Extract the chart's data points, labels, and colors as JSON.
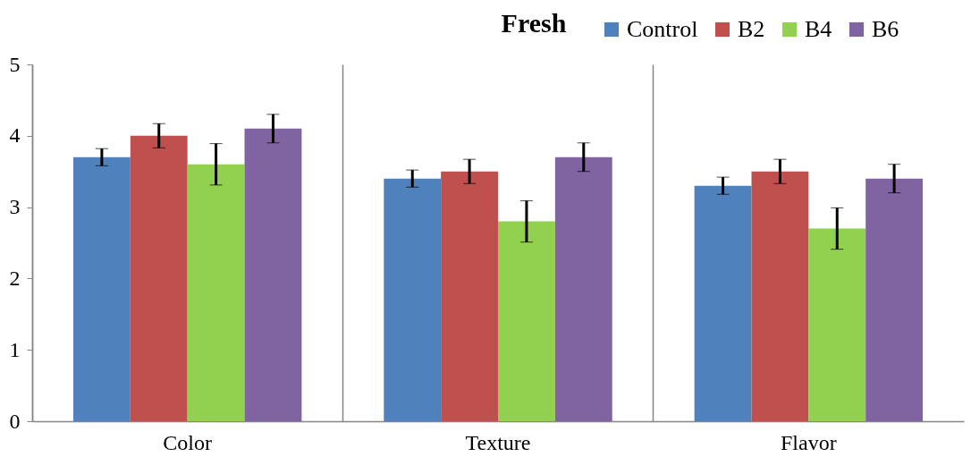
{
  "chart_data": {
    "type": "bar",
    "title": "Fresh",
    "categories": [
      "Color",
      "Texture",
      "Flavor"
    ],
    "series": [
      {
        "name": "Control",
        "color": "#4f81bd",
        "values": [
          3.7,
          3.4,
          3.3
        ],
        "errors": [
          0.12,
          0.12,
          0.12
        ]
      },
      {
        "name": "B2",
        "color": "#c0504d",
        "values": [
          4.0,
          3.5,
          3.5
        ],
        "errors": [
          0.17,
          0.17,
          0.17
        ]
      },
      {
        "name": "B4",
        "color": "#92d050",
        "values": [
          3.6,
          2.8,
          2.7
        ],
        "errors": [
          0.29,
          0.29,
          0.29
        ]
      },
      {
        "name": "B6",
        "color": "#8064a2",
        "values": [
          4.1,
          3.7,
          3.4
        ],
        "errors": [
          0.2,
          0.2,
          0.2
        ]
      }
    ],
    "ylim": [
      0,
      5
    ],
    "yticks": [
      0,
      1,
      2,
      3,
      4,
      5
    ],
    "grid": "x",
    "legend": "top right"
  }
}
